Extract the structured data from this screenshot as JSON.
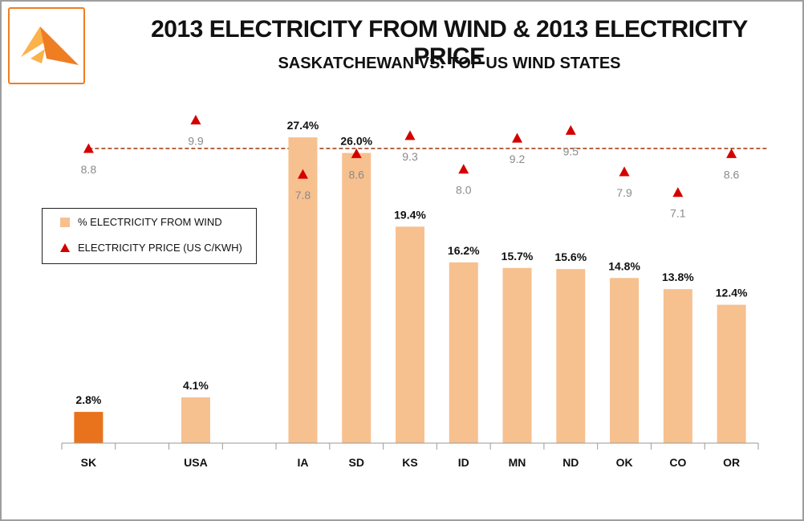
{
  "header": {
    "title": "2013 ELECTRICITY FROM WIND & 2013 ELECTRICITY PRICE",
    "subtitle": "SASKATCHEWAN VS. TOP US WIND STATES"
  },
  "legend": {
    "wind_label": "% ELECTRICITY FROM WIND",
    "price_label": "ELECTRICITY PRICE (US C/KWH)"
  },
  "colors": {
    "highlight_bar": "#e8731c",
    "bar": "#f7c08f",
    "marker": "#d40000",
    "reference_line": "#a0441a",
    "logo_orange": "#ef7d22",
    "logo_yellow": "#fbb24a"
  },
  "chart_data": {
    "type": "bar",
    "title": "2013 ELECTRICITY FROM WIND & 2013 ELECTRICITY PRICE",
    "subtitle": "SASKATCHEWAN VS. TOP US WIND STATES",
    "categories": [
      "SK",
      "",
      "USA",
      "",
      "IA",
      "SD",
      "KS",
      "ID",
      "MN",
      "ND",
      "OK",
      "CO",
      "OR"
    ],
    "series": [
      {
        "name": "% ELECTRICITY FROM WIND",
        "kind": "bar",
        "values": [
          2.8,
          null,
          4.1,
          null,
          27.4,
          26.0,
          19.4,
          16.2,
          15.7,
          15.6,
          14.8,
          13.8,
          12.4
        ],
        "labels": [
          "2.8%",
          "",
          "4.1%",
          "",
          "27.4%",
          "26.0%",
          "19.4%",
          "16.2%",
          "15.7%",
          "15.6%",
          "14.8%",
          "13.8%",
          "12.4%"
        ],
        "highlight_index": 0
      },
      {
        "name": "ELECTRICITY PRICE (US C/KWH)",
        "kind": "scatter-triangle",
        "values": [
          8.8,
          null,
          9.9,
          null,
          7.8,
          8.6,
          9.3,
          8.0,
          9.2,
          9.5,
          7.9,
          7.1,
          8.6
        ],
        "labels": [
          "8.8",
          "",
          "9.9",
          "",
          "7.8",
          "8.6",
          "9.3",
          "8.0",
          "9.2",
          "9.5",
          "7.9",
          "7.1",
          "8.6"
        ]
      }
    ],
    "reference_line": {
      "value": 8.8,
      "series": "ELECTRICITY PRICE (US C/KWH)",
      "style": "dashed"
    },
    "legend_position": "left",
    "grid": false
  }
}
